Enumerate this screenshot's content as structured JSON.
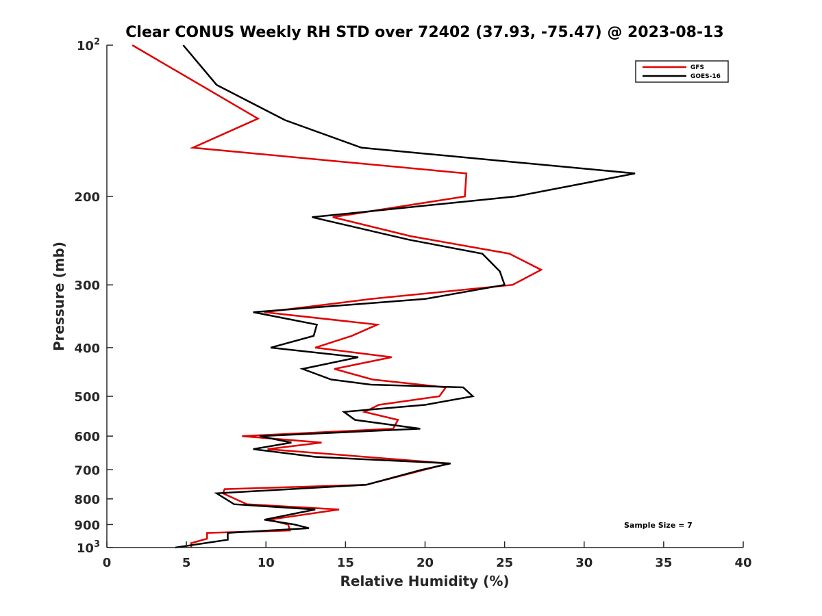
{
  "chart_data": {
    "type": "line",
    "title": "Clear CONUS Weekly RH STD over 72402 (37.93, -75.47) @ 2023-08-13",
    "xlabel": "Relative Humidity (%)",
    "ylabel": "Pressure (mb)",
    "xlim": [
      0,
      40
    ],
    "ylim": [
      100,
      1000
    ],
    "yscale": "log",
    "yreversed": false,
    "grid": false,
    "x_ticks": [
      0,
      5,
      10,
      15,
      20,
      25,
      30,
      35,
      40
    ],
    "x_tick_labels": [
      "0",
      "5",
      "10",
      "15",
      "20",
      "25",
      "30",
      "35",
      "40"
    ],
    "y_ticks": [
      100,
      200,
      300,
      400,
      500,
      600,
      700,
      800,
      900,
      1000
    ],
    "y_tick_labels": [
      {
        "base": "10",
        "exp": "2"
      },
      {
        "text": "200"
      },
      {
        "text": "300"
      },
      {
        "text": "400"
      },
      {
        "text": "500"
      },
      {
        "text": "600"
      },
      {
        "text": "700"
      },
      {
        "text": "800"
      },
      {
        "text": "900"
      },
      {
        "base": "10",
        "exp": "3"
      }
    ],
    "legend": {
      "position": "top-right",
      "entries": [
        "GFS",
        "GOES-16"
      ]
    },
    "annotation": "Sample Size = 7",
    "series": [
      {
        "name": "GFS",
        "color": "#e00000",
        "points": [
          [
            1.6,
            100
          ],
          [
            9.5,
            140
          ],
          [
            5.4,
            160
          ],
          [
            22.6,
            180
          ],
          [
            22.5,
            200
          ],
          [
            14.2,
            220
          ],
          [
            19.1,
            240
          ],
          [
            25.3,
            260
          ],
          [
            27.3,
            280
          ],
          [
            25.5,
            300
          ],
          [
            16.6,
            320
          ],
          [
            9.9,
            340
          ],
          [
            17.0,
            360
          ],
          [
            15.4,
            379
          ],
          [
            13.1,
            400
          ],
          [
            17.9,
            418
          ],
          [
            14.3,
            441
          ],
          [
            16.7,
            463
          ],
          [
            21.3,
            480
          ],
          [
            20.9,
            500
          ],
          [
            17.1,
            520
          ],
          [
            16.2,
            537
          ],
          [
            18.3,
            557
          ],
          [
            18.0,
            580
          ],
          [
            8.5,
            600
          ],
          [
            13.5,
            618
          ],
          [
            10.1,
            637
          ],
          [
            21.5,
            680
          ],
          [
            16.3,
            750
          ],
          [
            7.4,
            765
          ],
          [
            7.3,
            780
          ],
          [
            8.8,
            820
          ],
          [
            14.6,
            840
          ],
          [
            10.2,
            880
          ],
          [
            11.4,
            900
          ],
          [
            11.5,
            925
          ],
          [
            6.3,
            935
          ],
          [
            6.3,
            960
          ],
          [
            5.3,
            980
          ],
          [
            5.3,
            1000
          ]
        ]
      },
      {
        "name": "GOES-16",
        "color": "#000000",
        "points": [
          [
            4.8,
            100
          ],
          [
            6.9,
            120
          ],
          [
            11.2,
            141
          ],
          [
            16.0,
            160
          ],
          [
            33.2,
            180
          ],
          [
            25.7,
            200
          ],
          [
            12.9,
            220
          ],
          [
            19.0,
            244
          ],
          [
            23.6,
            260
          ],
          [
            24.7,
            282
          ],
          [
            25.0,
            300
          ],
          [
            20.0,
            320
          ],
          [
            9.2,
            340
          ],
          [
            13.2,
            360
          ],
          [
            13.0,
            379
          ],
          [
            10.3,
            400
          ],
          [
            15.8,
            418
          ],
          [
            12.3,
            441
          ],
          [
            14.1,
            463
          ],
          [
            16.6,
            474
          ],
          [
            22.4,
            480
          ],
          [
            23.0,
            500
          ],
          [
            20.0,
            520
          ],
          [
            14.9,
            537
          ],
          [
            15.6,
            557
          ],
          [
            17.9,
            570
          ],
          [
            19.7,
            580
          ],
          [
            9.6,
            600
          ],
          [
            11.6,
            618
          ],
          [
            9.2,
            637
          ],
          [
            13.1,
            660
          ],
          [
            21.6,
            680
          ],
          [
            19.8,
            700
          ],
          [
            16.3,
            750
          ],
          [
            6.9,
            780
          ],
          [
            8.0,
            820
          ],
          [
            13.1,
            840
          ],
          [
            9.9,
            880
          ],
          [
            11.8,
            900
          ],
          [
            12.7,
            915
          ],
          [
            7.6,
            935
          ],
          [
            7.6,
            965
          ],
          [
            4.3,
            1000
          ]
        ]
      }
    ]
  }
}
